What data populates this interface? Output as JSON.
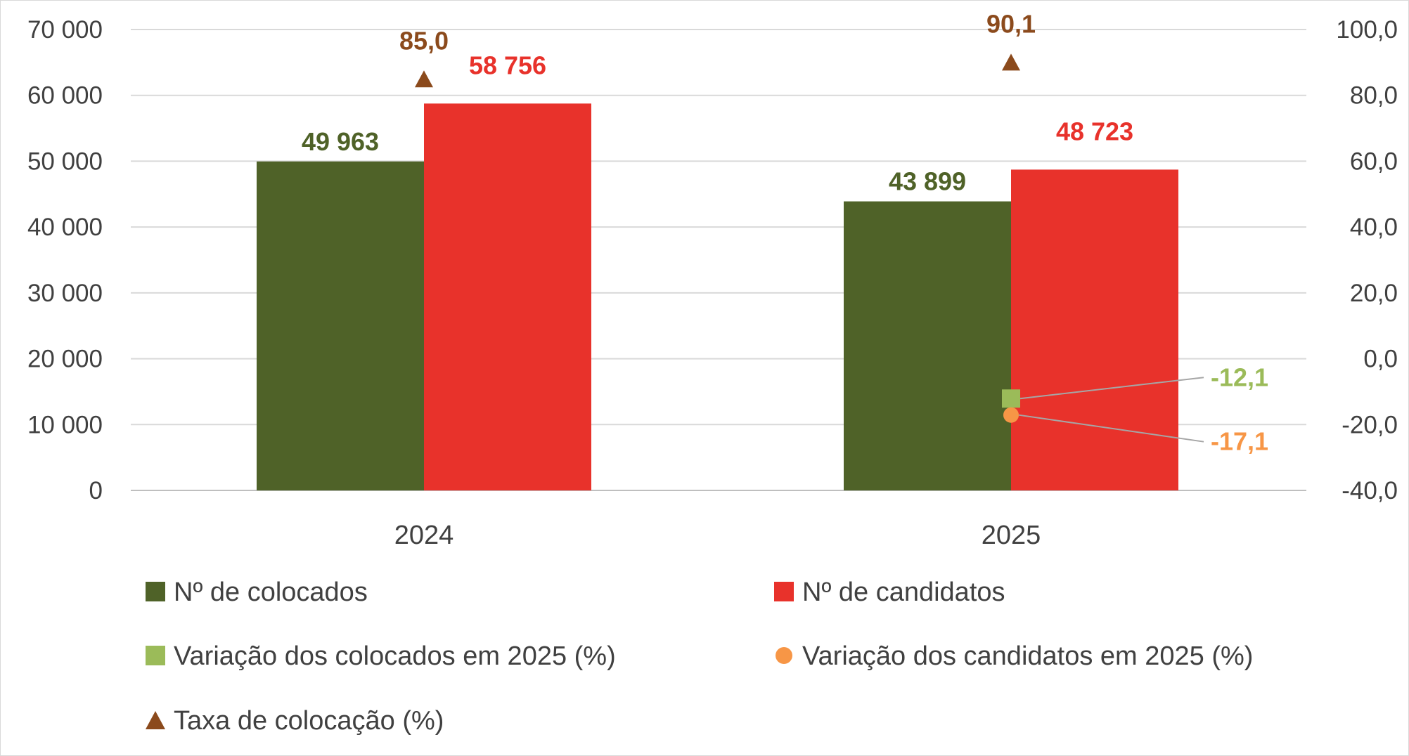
{
  "chart_data": {
    "type": "bar",
    "categories": [
      "2024",
      "2025"
    ],
    "series": [
      {
        "name": "Nº de colocados",
        "kind": "bar",
        "axis": "left",
        "color": "#4f6228",
        "values": [
          49963,
          43899
        ],
        "labels": [
          "49 963",
          "43 899"
        ]
      },
      {
        "name": "Nº de candidatos",
        "kind": "bar",
        "axis": "left",
        "color": "#e8322b",
        "values": [
          58756,
          48723
        ],
        "labels": [
          "58 756",
          "48 723"
        ]
      },
      {
        "name": "Variação dos colocados em 2025 (%)",
        "kind": "marker",
        "marker": "square",
        "axis": "right",
        "color": "#9bbb59",
        "values": [
          null,
          -12.1
        ],
        "labels": [
          "",
          "-12,1"
        ]
      },
      {
        "name": "Variação dos candidatos em 2025 (%)",
        "kind": "marker",
        "marker": "circle",
        "axis": "right",
        "color": "#f79646",
        "values": [
          null,
          -17.1
        ],
        "labels": [
          "",
          "-17,1"
        ]
      },
      {
        "name": "Taxa de colocação (%)",
        "kind": "marker",
        "marker": "triangle",
        "axis": "right",
        "color": "#8b4a1c",
        "values": [
          85.0,
          90.1
        ],
        "labels": [
          "85,0",
          "90,1"
        ]
      }
    ],
    "y_left": {
      "min": 0,
      "max": 70000,
      "step": 10000,
      "ticks": [
        "0",
        "10 000",
        "20 000",
        "30 000",
        "40 000",
        "50 000",
        "60 000",
        "70 000"
      ]
    },
    "y_right": {
      "min": -40,
      "max": 100,
      "step": 20,
      "ticks": [
        "-40,0",
        "-20,0",
        "0,0",
        "20,0",
        "40,0",
        "60,0",
        "80,0",
        "100,0"
      ]
    },
    "label_colors": {
      "colocados": "#4f6228",
      "candidatos": "#e8322b",
      "var_colocados": "#9bbb59",
      "var_candidatos": "#f79646",
      "taxa": "#8b4a1c"
    },
    "grid": true,
    "legend_position": "bottom"
  }
}
